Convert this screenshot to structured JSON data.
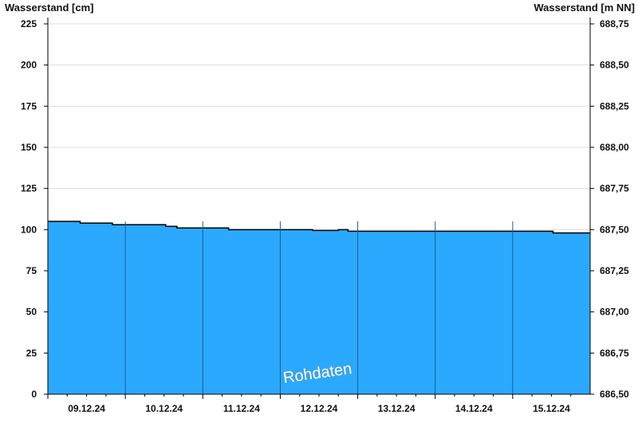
{
  "chart_data": {
    "type": "area",
    "ylabel_left": "Wasserstand [cm]",
    "ylabel_right": "Wasserstand [m NN]",
    "ylim": [
      0,
      225
    ],
    "ylim_right": [
      686.5,
      688.75
    ],
    "yticks_left": [
      "0",
      "25",
      "50",
      "75",
      "100",
      "125",
      "150",
      "175",
      "200",
      "225"
    ],
    "yticks_right": [
      "686,50",
      "686,75",
      "687,00",
      "687,25",
      "687,50",
      "687,75",
      "688,00",
      "688,25",
      "688,50",
      "688,75"
    ],
    "xlim": [
      "09.12.24 00:00",
      "16.12.24 00:00"
    ],
    "xticks": [
      "09.12.24",
      "10.12.24",
      "11.12.24",
      "12.12.24",
      "13.12.24",
      "14.12.24",
      "15.12.24"
    ],
    "grid": true,
    "fill_color": "#2aa9ff",
    "watermark": "Rohdaten",
    "points": [
      [
        "09.12.24 00:00",
        105
      ],
      [
        "09.12.24 10:00",
        104
      ],
      [
        "09.12.24 20:00",
        103
      ],
      [
        "10.12.24 12:30",
        102
      ],
      [
        "10.12.24 16:00",
        101
      ],
      [
        "11.12.24 08:00",
        100
      ],
      [
        "12.12.24 10:00",
        99.5
      ],
      [
        "12.12.24 18:00",
        100
      ],
      [
        "12.12.24 21:00",
        99
      ],
      [
        "15.12.24 12:30",
        98
      ],
      [
        "16.12.24 00:00",
        98
      ]
    ]
  }
}
